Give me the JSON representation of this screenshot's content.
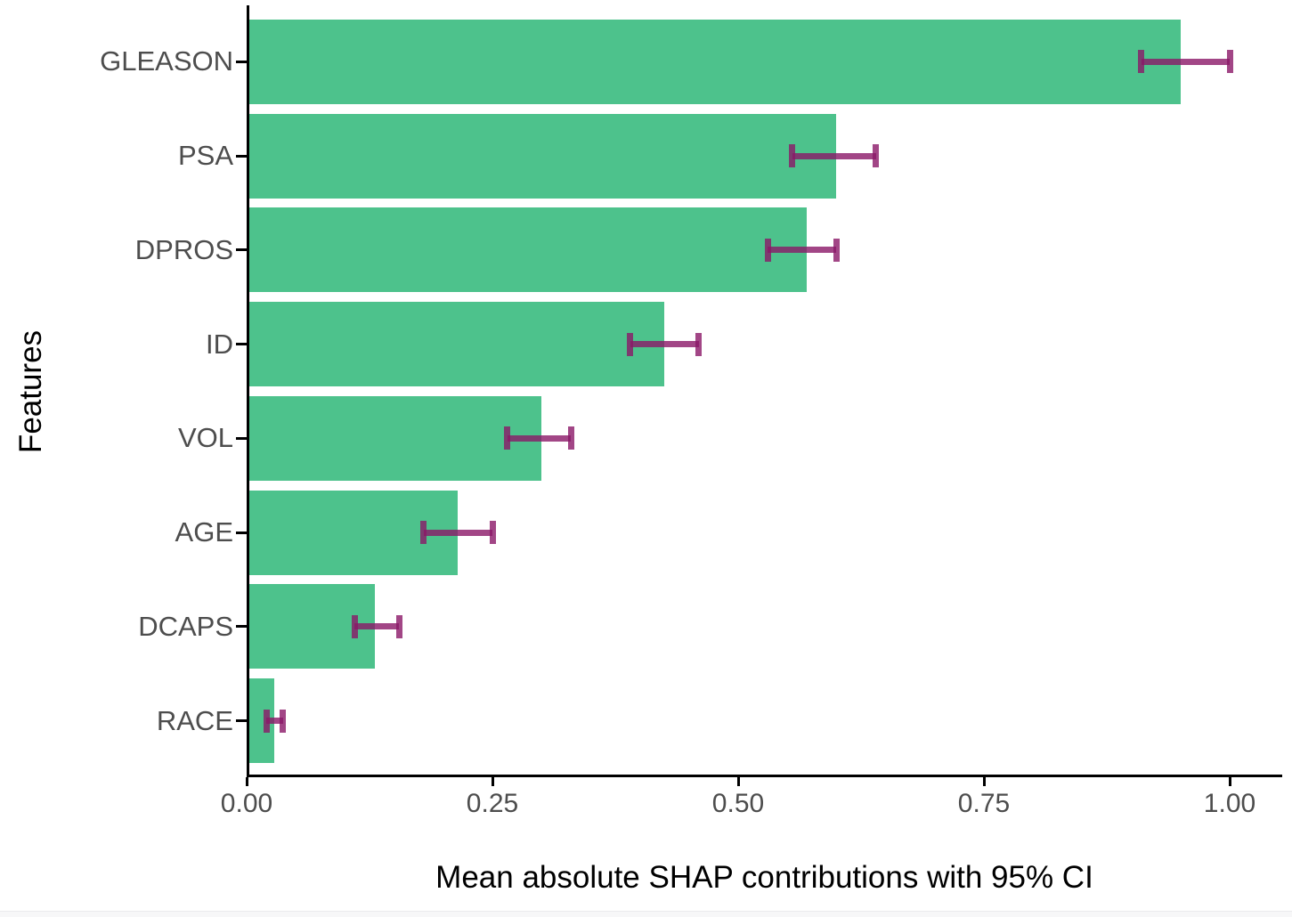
{
  "chart_data": {
    "type": "bar",
    "orientation": "horizontal",
    "title": "",
    "xlabel": "Mean absolute SHAP contributions with 95% CI",
    "ylabel": "Features",
    "categories": [
      "GLEASON",
      "PSA",
      "DPROS",
      "ID",
      "VOL",
      "AGE",
      "DCAPS",
      "RACE"
    ],
    "values": [
      0.95,
      0.6,
      0.57,
      0.425,
      0.3,
      0.215,
      0.13,
      0.028
    ],
    "ci_low": [
      0.91,
      0.555,
      0.53,
      0.39,
      0.265,
      0.18,
      0.11,
      0.02
    ],
    "ci_high": [
      1.0,
      0.64,
      0.6,
      0.46,
      0.33,
      0.25,
      0.155,
      0.037
    ],
    "xlim": [
      0,
      1.05
    ],
    "xticks": [
      0,
      0.25,
      0.5,
      0.75,
      1.0
    ],
    "xtick_labels": [
      "0.00",
      "0.25",
      "0.50",
      "0.75",
      "1.00"
    ],
    "grid": false,
    "legend": "none",
    "bar_color": "#4DC28C",
    "errorbar_color": "#8B1868",
    "errorbar_opacity": 0.8,
    "axis_line_color": "#000000",
    "tick_label_color": "#4D4D4D",
    "axis_title_color": "#000000"
  }
}
